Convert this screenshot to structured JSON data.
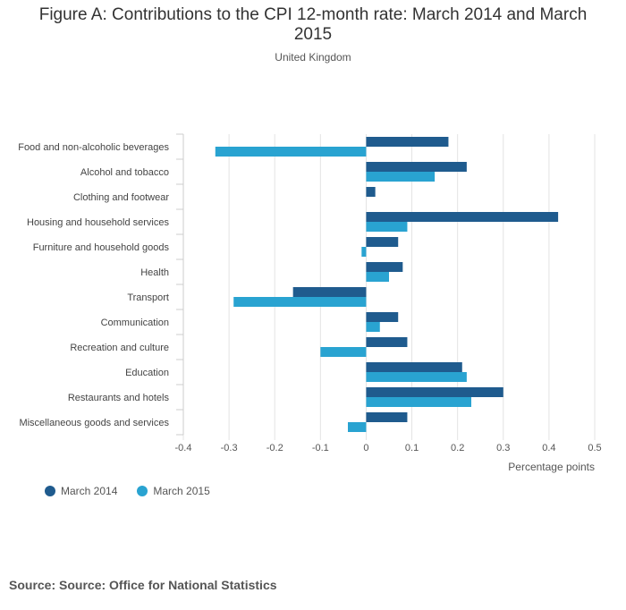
{
  "title": "Figure A: Contributions to the CPI 12-month rate: March 2014 and March 2015",
  "subtitle": "United Kingdom",
  "source": "Source: Source: Office for National Statistics",
  "chart_data": {
    "type": "bar",
    "orientation": "horizontal",
    "categories": [
      "Food and non-alcoholic beverages",
      "Alcohol and tobacco",
      "Clothing and footwear",
      "Housing and household services",
      "Furniture and household goods",
      "Health",
      "Transport",
      "Communication",
      "Recreation and culture",
      "Education",
      "Restaurants and hotels",
      "Miscellaneous goods and services"
    ],
    "series": [
      {
        "name": "March 2014",
        "color": "#1f5b8e",
        "values": [
          0.18,
          0.22,
          0.02,
          0.42,
          0.07,
          0.08,
          -0.16,
          0.07,
          0.09,
          0.21,
          0.3,
          0.09
        ]
      },
      {
        "name": "March 2015",
        "color": "#29a3d1",
        "values": [
          -0.33,
          0.15,
          0.0,
          0.09,
          -0.01,
          0.05,
          -0.29,
          0.03,
          -0.1,
          0.22,
          0.23,
          -0.04
        ]
      }
    ],
    "xlim": [
      -0.4,
      0.5
    ],
    "xticks": [
      "-0.4",
      "-0.3",
      "-0.2",
      "-0.1",
      "0",
      "0.1",
      "0.2",
      "0.3",
      "0.4",
      "0.5"
    ],
    "xlabel": "Percentage points",
    "ylabel": "",
    "grid": true,
    "legend_position": "bottom-left"
  }
}
